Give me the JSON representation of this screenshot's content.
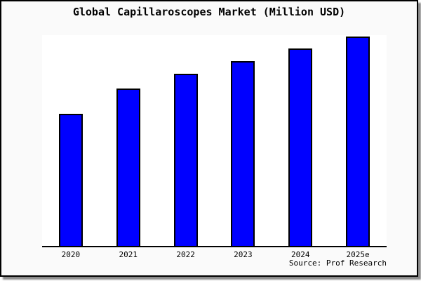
{
  "window": {
    "background_color": "#fafafa",
    "border_color": "#000000",
    "shadow_color": "#8a8a8a"
  },
  "chart_data": {
    "type": "bar",
    "title": "Global Capillaroscopes Market (Million USD)",
    "categories": [
      "2020",
      "2021",
      "2022",
      "2023",
      "2024",
      "2025e"
    ],
    "values": [
      63,
      75,
      82,
      88,
      94,
      100
    ],
    "values_estimated": true,
    "xlabel": "",
    "ylabel": "",
    "ylim": [
      0,
      100.5
    ],
    "grid": false,
    "legend": false,
    "bar_color": "#0000ff",
    "bar_border_color": "#000000",
    "plot_background": "#ffffff",
    "source_note": "Source: Prof Research"
  }
}
